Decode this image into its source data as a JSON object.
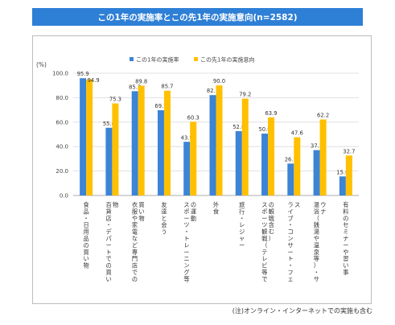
{
  "title": "この1年の実施率とこの先1年の実施意向(n=2582)",
  "note": "(注)オンライン・インターネットでの実施も含む",
  "colors": {
    "title_bg": "#2e7fd6",
    "series1": "#3b84d6",
    "series2": "#ffc000"
  },
  "chart_data": {
    "type": "bar",
    "y_unit_label": "(%)",
    "ylim": [
      0,
      100
    ],
    "yticks": [
      "0.0",
      "20.0",
      "40.0",
      "60.0",
      "80.0",
      "100.0"
    ],
    "grid": true,
    "legend_position": "top-center",
    "categories": [
      "食品・日用品の買い物",
      "百貨店・デパートでの買い物",
      "衣服や家電など専門店での買い物",
      "友達と会う",
      "スポーツ・トレーニング等の運動",
      "外食",
      "旅行・レジャー",
      "スポーツ観戦（テレビ等での観戦含む）",
      "ライブ・コンサート・フェス",
      "温浴（銭湯や温泉等）・サウナ",
      "有料のセミナーや習い事"
    ],
    "series": [
      {
        "name": "この1年の実施率",
        "values": [
          95.9,
          55.4,
          85.3,
          69.7,
          43.9,
          82.1,
          52.6,
          50.6,
          26.1,
          37.1,
          15.6
        ],
        "labels": [
          "95.9",
          "55.4",
          "85.3",
          "69.7",
          "43.9",
          "82.1",
          "52.6",
          "50.6",
          "26.1",
          "37.1",
          "15.6"
        ]
      },
      {
        "name": "この先1年の実施意向",
        "values": [
          94.9,
          75.3,
          89.8,
          85.7,
          60.3,
          90.0,
          79.2,
          63.9,
          47.6,
          62.2,
          32.7
        ],
        "labels": [
          "94.9",
          "75.3",
          "89.8",
          "85.7",
          "60.3",
          "90.0",
          "79.2",
          "63.9",
          "47.6",
          "62.2",
          "32.7"
        ]
      }
    ]
  }
}
